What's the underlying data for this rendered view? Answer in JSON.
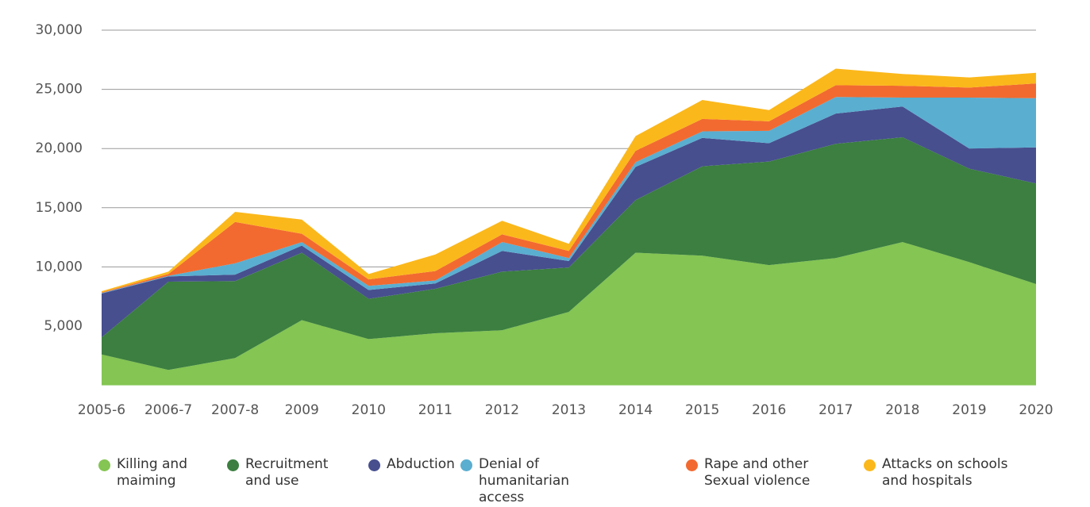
{
  "chart_data": {
    "type": "stacked_area",
    "categories": [
      "2005-6",
      "2006-7",
      "2007-8",
      "2009",
      "2010",
      "2011",
      "2012",
      "2013",
      "2014",
      "2015",
      "2016",
      "2017",
      "2018",
      "2019",
      "2020"
    ],
    "series": [
      {
        "name": "Killing and maiming",
        "color": "#84c553",
        "values": [
          2600,
          1300,
          2300,
          5500,
          3900,
          4400,
          4650,
          6200,
          11200,
          10950,
          10150,
          10750,
          12100,
          10400,
          8550
        ]
      },
      {
        "name": "Recruitment and use",
        "color": "#3c7f40",
        "values": [
          1450,
          7450,
          6500,
          5700,
          3400,
          3750,
          4950,
          3750,
          4450,
          7550,
          8750,
          9650,
          8850,
          7900,
          8500
        ]
      },
      {
        "name": "Abduction",
        "color": "#474f8e",
        "values": [
          3700,
          450,
          550,
          600,
          750,
          450,
          1750,
          550,
          2800,
          2400,
          1550,
          2550,
          2600,
          1700,
          3050
        ]
      },
      {
        "name": "Denial of humanitarian access",
        "color": "#5aaed0",
        "values": [
          50,
          50,
          950,
          300,
          350,
          250,
          750,
          250,
          400,
          550,
          1050,
          1400,
          750,
          4300,
          4150
        ]
      },
      {
        "name": "Rape and other Sexual violence",
        "color": "#f26a30",
        "values": [
          50,
          150,
          3500,
          700,
          550,
          800,
          650,
          600,
          950,
          1050,
          800,
          1000,
          1000,
          850,
          1250
        ]
      },
      {
        "name": "Attacks on schools and hospitals",
        "color": "#fbb81b",
        "values": [
          100,
          200,
          850,
          1200,
          450,
          1400,
          1150,
          600,
          1250,
          1600,
          950,
          1400,
          1000,
          850,
          900
        ]
      }
    ],
    "ylim": [
      0,
      30000
    ],
    "yticks": [
      {
        "value": 5000,
        "label": "5,000"
      },
      {
        "value": 10000,
        "label": "10,000"
      },
      {
        "value": 15000,
        "label": "15,000"
      },
      {
        "value": 20000,
        "label": "20,000"
      },
      {
        "value": 25000,
        "label": "25,000"
      },
      {
        "value": 30000,
        "label": "30,000"
      }
    ],
    "grid": true
  }
}
